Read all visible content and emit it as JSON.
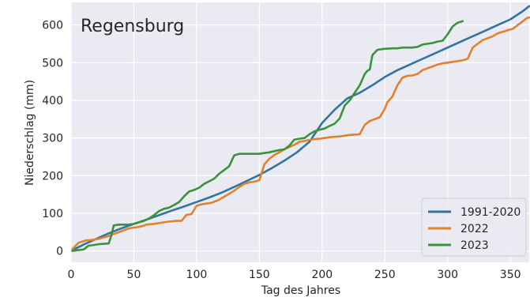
{
  "chart_data": {
    "type": "line",
    "title": "Regensburg",
    "xlabel": "Tag des Jahres",
    "ylabel": "Niederschlag (mm)",
    "xlim": [
      0,
      365
    ],
    "ylim": [
      -30,
      660
    ],
    "xticks": [
      0,
      50,
      100,
      150,
      200,
      250,
      300,
      350
    ],
    "yticks": [
      0,
      100,
      200,
      300,
      400,
      500,
      600
    ],
    "grid": true,
    "legend_position": "bottom-right",
    "colors": {
      "background": "#eaeaf2",
      "grid": "#ffffff"
    },
    "series": [
      {
        "name": "1991-2020",
        "color": "#3274a1",
        "x": [
          1,
          10,
          20,
          30,
          40,
          50,
          60,
          70,
          80,
          90,
          100,
          110,
          120,
          130,
          140,
          150,
          160,
          170,
          180,
          190,
          200,
          210,
          220,
          230,
          240,
          250,
          260,
          270,
          280,
          290,
          300,
          310,
          320,
          330,
          340,
          350,
          360,
          365
        ],
        "y": [
          2,
          17,
          32,
          47,
          60,
          72,
          83,
          95,
          107,
          118,
          130,
          142,
          155,
          170,
          186,
          202,
          220,
          240,
          262,
          290,
          340,
          375,
          405,
          420,
          440,
          462,
          480,
          495,
          510,
          525,
          540,
          555,
          570,
          585,
          600,
          615,
          637,
          650
        ]
      },
      {
        "name": "2022",
        "color": "#e1812c",
        "x": [
          1,
          3,
          6,
          12,
          18,
          22,
          26,
          30,
          34,
          38,
          42,
          46,
          50,
          54,
          58,
          60,
          66,
          72,
          78,
          84,
          88,
          92,
          96,
          100,
          104,
          108,
          112,
          118,
          122,
          126,
          130,
          134,
          138,
          142,
          146,
          150,
          154,
          158,
          162,
          166,
          170,
          174,
          178,
          182,
          186,
          190,
          194,
          198,
          202,
          206,
          210,
          214,
          218,
          222,
          226,
          230,
          234,
          236,
          238,
          242,
          246,
          250,
          252,
          256,
          260,
          264,
          268,
          272,
          276,
          280,
          284,
          288,
          292,
          296,
          300,
          304,
          308,
          312,
          316,
          320,
          324,
          328,
          332,
          336,
          340,
          344,
          348,
          352,
          356,
          360,
          363,
          365
        ],
        "y": [
          5,
          12,
          22,
          28,
          30,
          32,
          36,
          40,
          45,
          50,
          55,
          60,
          62,
          64,
          67,
          70,
          72,
          75,
          78,
          80,
          80,
          96,
          98,
          120,
          124,
          126,
          128,
          136,
          144,
          152,
          160,
          170,
          178,
          182,
          184,
          188,
          230,
          245,
          255,
          262,
          270,
          276,
          282,
          290,
          292,
          295,
          297,
          298,
          300,
          302,
          303,
          304,
          306,
          308,
          309,
          310,
          335,
          340,
          345,
          350,
          355,
          378,
          395,
          410,
          440,
          460,
          465,
          466,
          470,
          480,
          485,
          490,
          495,
          498,
          500,
          502,
          504,
          506,
          510,
          540,
          550,
          560,
          565,
          570,
          578,
          582,
          586,
          590,
          600,
          610,
          618,
          620
        ]
      },
      {
        "name": "2023",
        "color": "#3a923a",
        "x": [
          1,
          5,
          10,
          14,
          18,
          22,
          26,
          30,
          32,
          34,
          38,
          42,
          46,
          50,
          54,
          58,
          62,
          66,
          70,
          74,
          78,
          82,
          86,
          90,
          94,
          98,
          102,
          106,
          110,
          114,
          118,
          122,
          126,
          128,
          130,
          134,
          138,
          142,
          146,
          150,
          154,
          158,
          162,
          166,
          170,
          174,
          178,
          182,
          186,
          190,
          194,
          198,
          202,
          206,
          210,
          214,
          218,
          222,
          226,
          230,
          234,
          236,
          238,
          240,
          244,
          248,
          252,
          256,
          260,
          264,
          268,
          272,
          276,
          280,
          284,
          288,
          292,
          296,
          300,
          304,
          308,
          312
        ],
        "y": [
          0,
          2,
          4,
          14,
          16,
          18,
          19,
          20,
          40,
          68,
          70,
          70,
          70,
          72,
          76,
          80,
          86,
          95,
          106,
          112,
          115,
          122,
          130,
          145,
          158,
          162,
          168,
          178,
          185,
          192,
          205,
          215,
          225,
          240,
          254,
          258,
          258,
          258,
          258,
          258,
          260,
          262,
          265,
          268,
          270,
          280,
          296,
          298,
          300,
          310,
          318,
          322,
          325,
          332,
          338,
          352,
          386,
          400,
          420,
          440,
          470,
          478,
          482,
          520,
          534,
          536,
          537,
          538,
          538,
          540,
          540,
          540,
          542,
          548,
          550,
          552,
          556,
          558,
          575,
          596,
          606,
          610
        ]
      }
    ]
  }
}
